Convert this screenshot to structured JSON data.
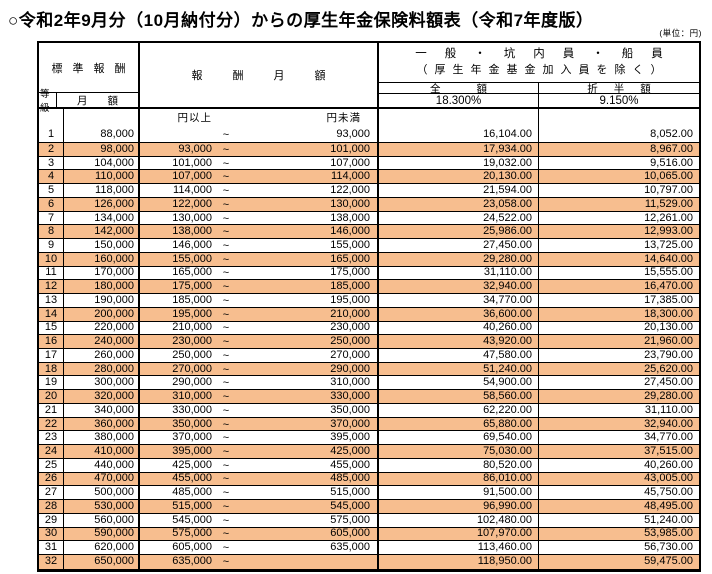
{
  "title": "○令和2年9月分（10月納付分）からの厚生年金保険料額表（令和7年度版）",
  "unit_note": "(単位：円)",
  "colors": {
    "alt_row_fill": "#F7BE8F",
    "border": "#000000",
    "background": "#FFFFFF"
  },
  "table": {
    "header": {
      "standard_reward": "標準報酬",
      "grade": "等級",
      "monthly_amount": "月額",
      "reward_monthly": "報酬月額",
      "group_title_line1": "一般・坑内員・船員",
      "group_title_line2": "（厚生年金基金加入員を除く）",
      "full_amount": "全額",
      "half_amount": "折半額",
      "full_rate": "18.300%",
      "half_rate": "9.150%",
      "lower_label": "円以上",
      "upper_label": "円未満",
      "tilde": "~"
    },
    "first_row": {
      "grade": "1",
      "monthly": "88,000",
      "lower": "",
      "upper": "93,000",
      "full": "16,104.00",
      "half": "8,052.00"
    },
    "rows": [
      {
        "grade": "2",
        "monthly": "98,000",
        "lower": "93,000",
        "upper": "101,000",
        "full": "17,934.00",
        "half": "8,967.00"
      },
      {
        "grade": "3",
        "monthly": "104,000",
        "lower": "101,000",
        "upper": "107,000",
        "full": "19,032.00",
        "half": "9,516.00"
      },
      {
        "grade": "4",
        "monthly": "110,000",
        "lower": "107,000",
        "upper": "114,000",
        "full": "20,130.00",
        "half": "10,065.00"
      },
      {
        "grade": "5",
        "monthly": "118,000",
        "lower": "114,000",
        "upper": "122,000",
        "full": "21,594.00",
        "half": "10,797.00"
      },
      {
        "grade": "6",
        "monthly": "126,000",
        "lower": "122,000",
        "upper": "130,000",
        "full": "23,058.00",
        "half": "11,529.00"
      },
      {
        "grade": "7",
        "monthly": "134,000",
        "lower": "130,000",
        "upper": "138,000",
        "full": "24,522.00",
        "half": "12,261.00"
      },
      {
        "grade": "8",
        "monthly": "142,000",
        "lower": "138,000",
        "upper": "146,000",
        "full": "25,986.00",
        "half": "12,993.00"
      },
      {
        "grade": "9",
        "monthly": "150,000",
        "lower": "146,000",
        "upper": "155,000",
        "full": "27,450.00",
        "half": "13,725.00"
      },
      {
        "grade": "10",
        "monthly": "160,000",
        "lower": "155,000",
        "upper": "165,000",
        "full": "29,280.00",
        "half": "14,640.00"
      },
      {
        "grade": "11",
        "monthly": "170,000",
        "lower": "165,000",
        "upper": "175,000",
        "full": "31,110.00",
        "half": "15,555.00"
      },
      {
        "grade": "12",
        "monthly": "180,000",
        "lower": "175,000",
        "upper": "185,000",
        "full": "32,940.00",
        "half": "16,470.00"
      },
      {
        "grade": "13",
        "monthly": "190,000",
        "lower": "185,000",
        "upper": "195,000",
        "full": "34,770.00",
        "half": "17,385.00"
      },
      {
        "grade": "14",
        "monthly": "200,000",
        "lower": "195,000",
        "upper": "210,000",
        "full": "36,600.00",
        "half": "18,300.00"
      },
      {
        "grade": "15",
        "monthly": "220,000",
        "lower": "210,000",
        "upper": "230,000",
        "full": "40,260.00",
        "half": "20,130.00"
      },
      {
        "grade": "16",
        "monthly": "240,000",
        "lower": "230,000",
        "upper": "250,000",
        "full": "43,920.00",
        "half": "21,960.00"
      },
      {
        "grade": "17",
        "monthly": "260,000",
        "lower": "250,000",
        "upper": "270,000",
        "full": "47,580.00",
        "half": "23,790.00"
      },
      {
        "grade": "18",
        "monthly": "280,000",
        "lower": "270,000",
        "upper": "290,000",
        "full": "51,240.00",
        "half": "25,620.00"
      },
      {
        "grade": "19",
        "monthly": "300,000",
        "lower": "290,000",
        "upper": "310,000",
        "full": "54,900.00",
        "half": "27,450.00"
      },
      {
        "grade": "20",
        "monthly": "320,000",
        "lower": "310,000",
        "upper": "330,000",
        "full": "58,560.00",
        "half": "29,280.00"
      },
      {
        "grade": "21",
        "monthly": "340,000",
        "lower": "330,000",
        "upper": "350,000",
        "full": "62,220.00",
        "half": "31,110.00"
      },
      {
        "grade": "22",
        "monthly": "360,000",
        "lower": "350,000",
        "upper": "370,000",
        "full": "65,880.00",
        "half": "32,940.00"
      },
      {
        "grade": "23",
        "monthly": "380,000",
        "lower": "370,000",
        "upper": "395,000",
        "full": "69,540.00",
        "half": "34,770.00"
      },
      {
        "grade": "24",
        "monthly": "410,000",
        "lower": "395,000",
        "upper": "425,000",
        "full": "75,030.00",
        "half": "37,515.00"
      },
      {
        "grade": "25",
        "monthly": "440,000",
        "lower": "425,000",
        "upper": "455,000",
        "full": "80,520.00",
        "half": "40,260.00"
      },
      {
        "grade": "26",
        "monthly": "470,000",
        "lower": "455,000",
        "upper": "485,000",
        "full": "86,010.00",
        "half": "43,005.00"
      },
      {
        "grade": "27",
        "monthly": "500,000",
        "lower": "485,000",
        "upper": "515,000",
        "full": "91,500.00",
        "half": "45,750.00"
      },
      {
        "grade": "28",
        "monthly": "530,000",
        "lower": "515,000",
        "upper": "545,000",
        "full": "96,990.00",
        "half": "48,495.00"
      },
      {
        "grade": "29",
        "monthly": "560,000",
        "lower": "545,000",
        "upper": "575,000",
        "full": "102,480.00",
        "half": "51,240.00"
      },
      {
        "grade": "30",
        "monthly": "590,000",
        "lower": "575,000",
        "upper": "605,000",
        "full": "107,970.00",
        "half": "53,985.00"
      },
      {
        "grade": "31",
        "monthly": "620,000",
        "lower": "605,000",
        "upper": "635,000",
        "full": "113,460.00",
        "half": "56,730.00"
      },
      {
        "grade": "32",
        "monthly": "650,000",
        "lower": "635,000",
        "upper": "",
        "full": "118,950.00",
        "half": "59,475.00"
      }
    ]
  }
}
